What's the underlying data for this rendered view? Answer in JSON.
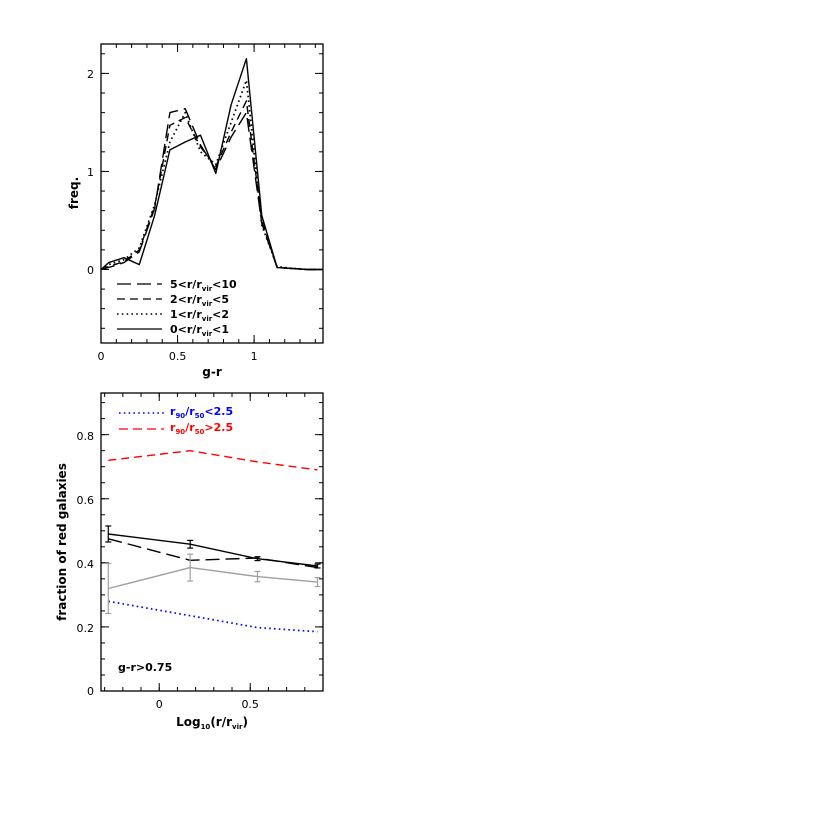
{
  "chart_data": [
    {
      "type": "line",
      "xlabel": "g-r",
      "ylabel": "freq.",
      "xlim": [
        0,
        1.45
      ],
      "ylim": [
        -0.75,
        2.3
      ],
      "xticks": [
        "0",
        "0.5",
        "1"
      ],
      "yticks": [
        "0",
        "1",
        "2"
      ],
      "legend": {
        "placement": "bottom-left",
        "entries": [
          {
            "pre": "5<r/r",
            "sub": "vir",
            "post": "<10"
          },
          {
            "pre": "2<r/r",
            "sub": "vir",
            "post": "<5"
          },
          {
            "pre": "1<r/r",
            "sub": "vir",
            "post": "<2"
          },
          {
            "pre": "0<r/r",
            "sub": "vir",
            "post": "<1"
          }
        ]
      },
      "x": [
        0.0,
        0.05,
        0.15,
        0.25,
        0.35,
        0.45,
        0.55,
        0.65,
        0.75,
        0.85,
        0.95,
        1.05,
        1.15,
        1.25,
        1.35,
        1.45
      ],
      "series": [
        {
          "name": "5<r/rvir<10",
          "style": "longdash",
          "values": [
            0.0,
            0.02,
            0.07,
            0.18,
            0.62,
            1.6,
            1.64,
            1.27,
            1.02,
            1.35,
            1.6,
            0.47,
            0.02,
            0.01,
            0.0,
            0.0
          ]
        },
        {
          "name": "2<r/rvir<5",
          "style": "dash",
          "values": [
            0.0,
            0.03,
            0.08,
            0.2,
            0.64,
            1.47,
            1.55,
            1.25,
            1.05,
            1.4,
            1.72,
            0.5,
            0.02,
            0.01,
            0.0,
            0.0
          ]
        },
        {
          "name": "1<r/rvir<2",
          "style": "dot",
          "values": [
            0.0,
            0.05,
            0.1,
            0.22,
            0.66,
            1.3,
            1.6,
            1.2,
            1.07,
            1.5,
            1.93,
            0.45,
            0.03,
            0.01,
            0.0,
            0.0
          ]
        },
        {
          "name": "0<r/rvir<1",
          "style": "solid",
          "values": [
            0.0,
            0.07,
            0.12,
            0.05,
            0.55,
            1.22,
            1.3,
            1.37,
            0.98,
            1.68,
            2.15,
            0.55,
            0.02,
            0.01,
            0.0,
            0.0
          ]
        }
      ]
    },
    {
      "type": "line",
      "xlabel_pre": "Log",
      "xlabel_sub1": "10",
      "xlabel_mid": "(r/r",
      "xlabel_sub2": "vir",
      "xlabel_post": ")",
      "ylabel": "fraction of red galaxies",
      "annotation": "g-r>0.75",
      "xlim": [
        -0.32,
        0.9
      ],
      "ylim": [
        0,
        0.93
      ],
      "xticks": [
        "0",
        "0.5"
      ],
      "yticks": [
        "0",
        "0.2",
        "0.4",
        "0.6",
        "0.8"
      ],
      "legend": {
        "placement": "top-left",
        "entries": [
          {
            "pre": "r",
            "sub1": "90",
            "mid": "/r",
            "sub2": "50",
            "post": "<2.5",
            "color": "#0000ff"
          },
          {
            "pre": "r",
            "sub1": "90",
            "mid": "/r",
            "sub2": "50",
            "post": ">2.5",
            "color": "#ff0000"
          }
        ]
      },
      "x": [
        -0.28,
        0.17,
        0.54,
        0.87
      ],
      "series": [
        {
          "name": "r90/r50<2.5",
          "style": "dot",
          "color": "#0000ff",
          "values": [
            0.28,
            0.235,
            0.198,
            0.185
          ]
        },
        {
          "name": "r90/r50>2.5",
          "style": "dash",
          "color": "#ff0000",
          "values": [
            0.72,
            0.75,
            0.715,
            0.69
          ]
        },
        {
          "style": "solid",
          "color": "#000000",
          "values": [
            0.49,
            0.458,
            0.413,
            0.39
          ],
          "errors": [
            0.025,
            0.012,
            0.006,
            0.006
          ]
        },
        {
          "style": "longdash",
          "color": "#000000",
          "values": [
            0.475,
            0.408,
            0.415,
            0.385
          ]
        },
        {
          "style": "solid",
          "color": "#a0a0a0",
          "values": [
            0.32,
            0.385,
            0.357,
            0.34
          ],
          "errors": [
            0.078,
            0.042,
            0.016,
            0.014
          ]
        }
      ]
    }
  ]
}
